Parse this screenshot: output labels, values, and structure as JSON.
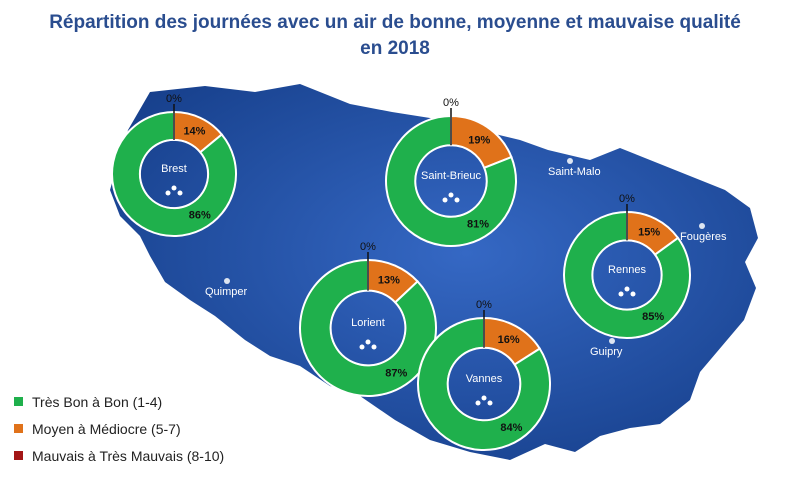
{
  "title_line1": "Répartition des journées avec un air de bonne, moyenne et mauvaise qualité",
  "title_line2": "en 2018",
  "colors": {
    "good": "#1fb04c",
    "medium": "#e0721a",
    "bad": "#a31616",
    "map": "#2656ad",
    "mapDark": "#17408c"
  },
  "legend": [
    {
      "label": "Très Bon à Bon (1-4)",
      "color": "#1fb04c"
    },
    {
      "label": "Moyen à Médiocre (5-7)",
      "color": "#e0721a"
    },
    {
      "label": "Mauvais à Très Mauvais (8-10)",
      "color": "#a31616"
    }
  ],
  "map_labels": [
    "Saint-Malo",
    "Fougères",
    "Quimper",
    "Guipry"
  ],
  "chart_data": {
    "type": "pie",
    "categories": [
      "Très Bon à Bon (1-4)",
      "Moyen à Médiocre (5-7)",
      "Mauvais à Très Mauvais (8-10)"
    ],
    "series": [
      {
        "name": "Brest",
        "values": [
          86,
          14,
          0
        ],
        "labels": [
          "86%",
          "14%",
          "0%"
        ]
      },
      {
        "name": "Saint-Brieuc",
        "values": [
          81,
          19,
          0
        ],
        "labels": [
          "81%",
          "19%",
          "0%"
        ]
      },
      {
        "name": "Rennes",
        "values": [
          85,
          15,
          0
        ],
        "labels": [
          "85%",
          "15%",
          "0%"
        ]
      },
      {
        "name": "Lorient",
        "values": [
          87,
          13,
          0
        ],
        "labels": [
          "87%",
          "13%",
          "0%"
        ]
      },
      {
        "name": "Vannes",
        "values": [
          84,
          16,
          0
        ],
        "labels": [
          "84%",
          "16%",
          "0%"
        ]
      }
    ]
  }
}
